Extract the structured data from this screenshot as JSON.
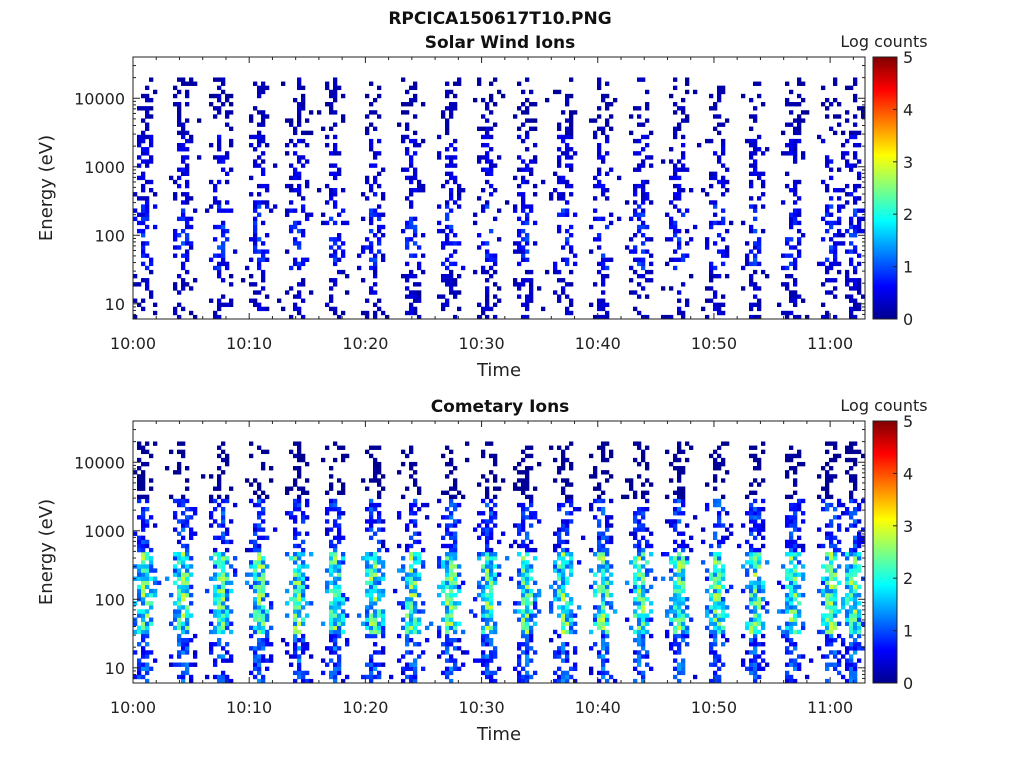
{
  "figure": {
    "title": "RPCICA150617T10.PNG"
  },
  "chart_data": [
    {
      "type": "heatmap",
      "title": "Solar Wind Ions",
      "xlabel": "Time",
      "ylabel": "Energy (eV)",
      "x_range": [
        "10:00",
        "11:03"
      ],
      "xticks": [
        "10:00",
        "10:10",
        "10:20",
        "10:30",
        "10:40",
        "10:50",
        "11:00"
      ],
      "y_scale": "log",
      "ylim": [
        6,
        40000
      ],
      "yticks": [
        10,
        100,
        1000,
        10000
      ],
      "ytick_labels": [
        "10",
        "100",
        "1000",
        "10000"
      ],
      "colorbar": {
        "label": "Log counts",
        "range": [
          0,
          5
        ],
        "ticks": [
          "0",
          "1",
          "2",
          "3",
          "4",
          "5"
        ],
        "colormap": "jet"
      },
      "pulse_times_min": [
        1,
        4.3,
        7.6,
        10.9,
        14.2,
        17.4,
        20.7,
        24,
        27.3,
        30.6,
        33.8,
        37.1,
        40.4,
        43.7,
        47,
        50.3,
        53.5,
        56.8,
        60.1,
        62
      ],
      "log_counts_by_energy_band": [
        {
          "energy_eV": "6-30",
          "typical_log_counts": 0.3
        },
        {
          "energy_eV": "30-300",
          "typical_log_counts": 0.6
        },
        {
          "energy_eV": "300-3000",
          "typical_log_counts": 0.4
        },
        {
          "energy_eV": "3000-20000",
          "typical_log_counts": 0.2
        }
      ],
      "max_log_counts": 2.2
    },
    {
      "type": "heatmap",
      "title": "Cometary Ions",
      "xlabel": "Time",
      "ylabel": "Energy (eV)",
      "x_range": [
        "10:00",
        "11:03"
      ],
      "xticks": [
        "10:00",
        "10:10",
        "10:20",
        "10:30",
        "10:40",
        "10:50",
        "11:00"
      ],
      "y_scale": "log",
      "ylim": [
        6,
        40000
      ],
      "yticks": [
        10,
        100,
        1000,
        10000
      ],
      "ytick_labels": [
        "10",
        "100",
        "1000",
        "10000"
      ],
      "colorbar": {
        "label": "Log counts",
        "range": [
          0,
          5
        ],
        "ticks": [
          "0",
          "1",
          "2",
          "3",
          "4",
          "5"
        ],
        "colormap": "jet"
      },
      "pulse_times_min": [
        1,
        4.3,
        7.6,
        10.9,
        14.2,
        17.4,
        20.7,
        24,
        27.3,
        30.6,
        33.8,
        37.1,
        40.4,
        43.7,
        47,
        50.3,
        53.5,
        56.8,
        60.1,
        62
      ],
      "log_counts_by_energy_band": [
        {
          "energy_eV": "6-30",
          "typical_log_counts": 0.8
        },
        {
          "energy_eV": "30-500",
          "typical_log_counts": 1.7
        },
        {
          "energy_eV": "500-3000",
          "typical_log_counts": 0.7
        },
        {
          "energy_eV": "3000-20000",
          "typical_log_counts": 0.1
        }
      ],
      "max_log_counts": 2.9
    }
  ]
}
